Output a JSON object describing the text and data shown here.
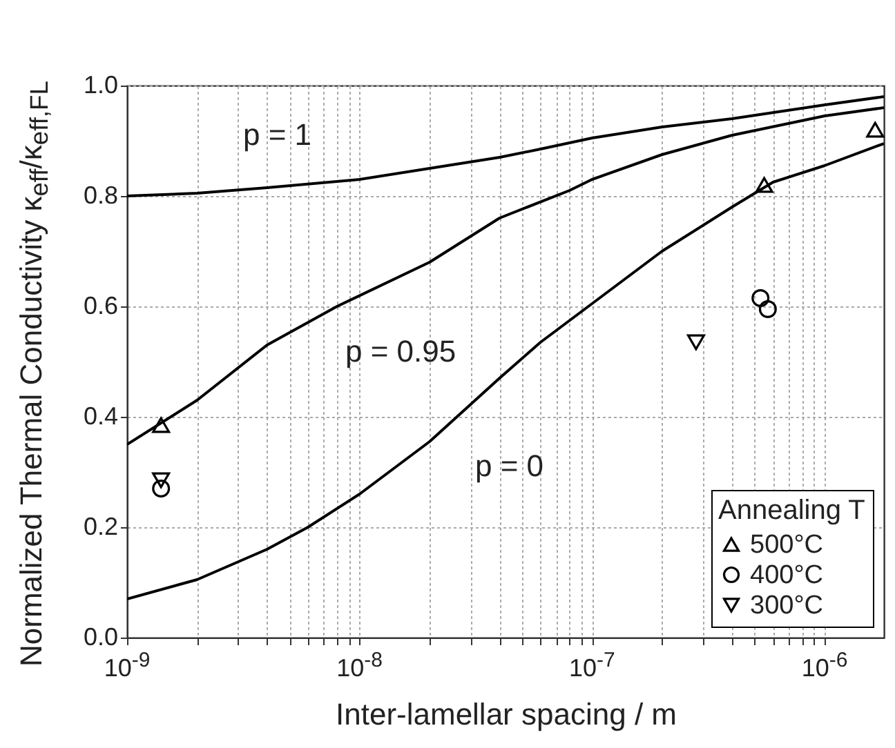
{
  "chart_data": {
    "type": "line",
    "xlabel": "Inter-lamellar spacing / m",
    "ylabel": "Normalized Thermal Conductivity κ$_{eff}$/κ$_{eff,FL}$",
    "legend_title": "Annealing T",
    "log": "x",
    "xlim": [
      1e-09,
      1.8e-06
    ],
    "ylim": [
      0,
      1
    ],
    "xticks": [
      {
        "value": 1e-09,
        "label": "10$^{-9}$"
      },
      {
        "value": 2e-09,
        "label": null
      },
      {
        "value": 3e-09,
        "label": null
      },
      {
        "value": 4e-09,
        "label": null
      },
      {
        "value": 5e-09,
        "label": null
      },
      {
        "value": 6e-09,
        "label": null
      },
      {
        "value": 7e-09,
        "label": null
      },
      {
        "value": 8e-09,
        "label": null
      },
      {
        "value": 9e-09,
        "label": null
      },
      {
        "value": 1e-08,
        "label": "10$^{-8}$"
      },
      {
        "value": 2e-08,
        "label": null
      },
      {
        "value": 3e-08,
        "label": null
      },
      {
        "value": 4e-08,
        "label": null
      },
      {
        "value": 5e-08,
        "label": null
      },
      {
        "value": 6e-08,
        "label": null
      },
      {
        "value": 7e-08,
        "label": null
      },
      {
        "value": 8e-08,
        "label": null
      },
      {
        "value": 9e-08,
        "label": null
      },
      {
        "value": 1e-07,
        "label": "10$^{-7}$"
      },
      {
        "value": 2e-07,
        "label": null
      },
      {
        "value": 3e-07,
        "label": null
      },
      {
        "value": 4e-07,
        "label": null
      },
      {
        "value": 5e-07,
        "label": null
      },
      {
        "value": 6e-07,
        "label": null
      },
      {
        "value": 7e-07,
        "label": null
      },
      {
        "value": 8e-07,
        "label": null
      },
      {
        "value": 9e-07,
        "label": null
      },
      {
        "value": 1e-06,
        "label": "10$^{-6}$"
      }
    ],
    "yticks": [
      {
        "value": 0,
        "label": "0.0"
      },
      {
        "value": 0.2,
        "label": "0.2"
      },
      {
        "value": 0.4,
        "label": "0.4"
      },
      {
        "value": 0.6,
        "label": "0.6"
      },
      {
        "value": 0.8,
        "label": "0.8"
      },
      {
        "value": 1,
        "label": "1.0"
      }
    ],
    "grid": true,
    "legend": "bottom right",
    "series": [
      {
        "type": "line",
        "color": "#000000",
        "line_style": "solid",
        "x": [
          1e-09,
          2e-09,
          4e-09,
          1e-08,
          2e-08,
          4e-08,
          6e-08,
          1e-07,
          2e-07,
          4e-07,
          1e-06,
          1.8e-06
        ],
        "values": [
          0.8,
          0.805,
          0.815,
          0.83,
          0.85,
          0.87,
          0.885,
          0.905,
          0.925,
          0.94,
          0.965,
          0.98
        ]
      },
      {
        "type": "line",
        "color": "#000000",
        "line_style": "solid",
        "x": [
          1e-09,
          2e-09,
          4e-09,
          8e-09,
          2e-08,
          4e-08,
          8e-08,
          1e-07,
          2e-07,
          4e-07,
          1e-06,
          1.8e-06
        ],
        "values": [
          0.35,
          0.43,
          0.53,
          0.6,
          0.68,
          0.76,
          0.81,
          0.83,
          0.875,
          0.91,
          0.945,
          0.96
        ]
      },
      {
        "type": "line",
        "color": "#000000",
        "line_style": "solid",
        "x": [
          1e-09,
          2e-09,
          4e-09,
          6e-09,
          1e-08,
          2e-08,
          4e-08,
          6e-08,
          1e-07,
          2e-07,
          4e-07,
          6e-07,
          1e-06,
          1.8e-06
        ],
        "values": [
          0.07,
          0.105,
          0.16,
          0.2,
          0.26,
          0.355,
          0.47,
          0.535,
          0.605,
          0.7,
          0.78,
          0.825,
          0.855,
          0.895
        ]
      },
      {
        "type": "scatter",
        "name": "500°C",
        "color": "#000000",
        "marker": "triangle",
        "x": [
          1.4e-09,
          5.5e-07,
          1.65e-06
        ],
        "values": [
          0.385,
          0.82,
          0.92
        ]
      },
      {
        "type": "scatter",
        "name": "400°C",
        "color": "#000000",
        "marker": "circle",
        "x": [
          1.4e-09,
          5.3e-07,
          5.7e-07
        ],
        "values": [
          0.27,
          0.615,
          0.595
        ]
      },
      {
        "type": "scatter",
        "name": "300°C",
        "color": "#000000",
        "marker": "triangle-down",
        "x": [
          1.4e-09,
          2.8e-07
        ],
        "values": [
          0.285,
          0.535
        ]
      }
    ],
    "annotations": [
      "p = 1",
      "p = 0.95",
      "p = 0"
    ]
  }
}
